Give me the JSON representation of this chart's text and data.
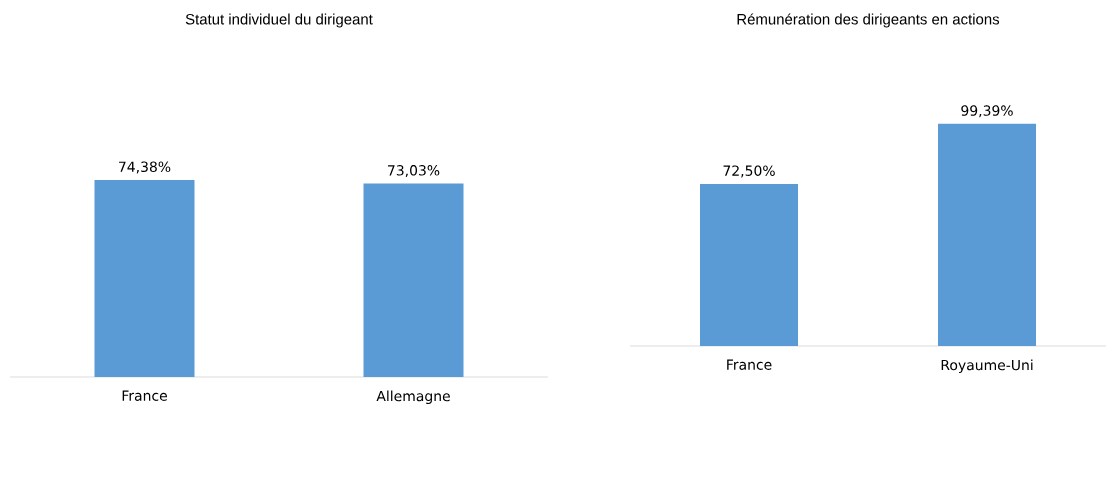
{
  "chart_data": [
    {
      "type": "bar",
      "title": "Statut individuel du dirigeant",
      "categories": [
        "France",
        "Allemagne"
      ],
      "values": [
        74.38,
        73.03
      ],
      "value_labels": [
        "74,38%",
        "73,03%"
      ],
      "color": "#5b9bd5"
    },
    {
      "type": "bar",
      "title": "Rémunération des dirigeants en actions",
      "categories": [
        "France",
        "Royaume-Uni"
      ],
      "values": [
        72.5,
        99.39
      ],
      "value_labels": [
        "72,50%",
        "99,39%"
      ],
      "color": "#5b9bd5"
    }
  ]
}
